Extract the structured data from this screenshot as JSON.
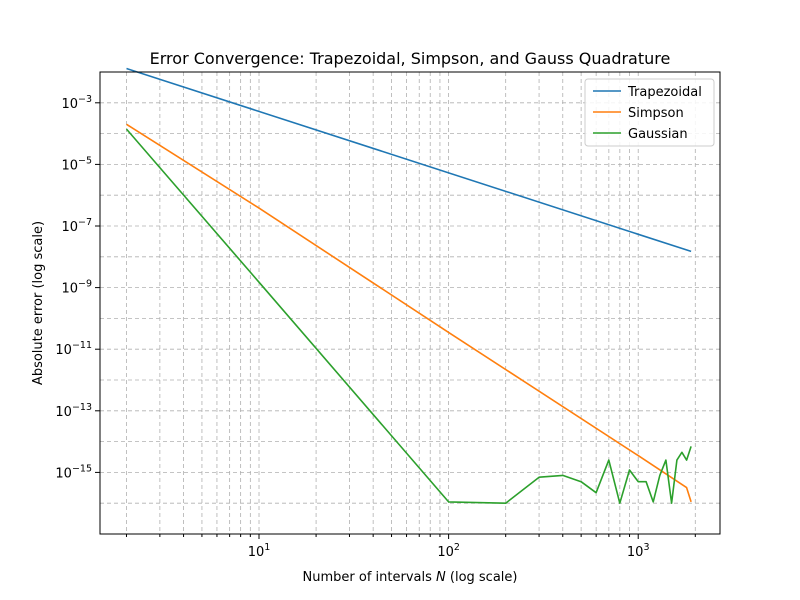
{
  "chart_data": {
    "type": "line",
    "title": "Error Convergence: Trapezoidal, Simpson, and Gauss Quadrature",
    "xlabel": "Number of intervals N (log scale)",
    "ylabel": "Absolute error (log scale)",
    "xscale": "log",
    "yscale": "log",
    "xlim": [
      1.45,
      2700
    ],
    "ylim": [
      1e-17,
      0.01
    ],
    "grid": "both major and minor, dashed",
    "legend": "top-right",
    "xticks": [
      {
        "value": 10,
        "label": "10",
        "sup": "1"
      },
      {
        "value": 100,
        "label": "10",
        "sup": "2"
      },
      {
        "value": 1000,
        "label": "10",
        "sup": "3"
      }
    ],
    "yticks": [
      {
        "value": 0.001,
        "label": "10",
        "sup": "−3"
      },
      {
        "value": 1e-05,
        "label": "10",
        "sup": "−5"
      },
      {
        "value": 1e-07,
        "label": "10",
        "sup": "−7"
      },
      {
        "value": 1e-09,
        "label": "10",
        "sup": "−9"
      },
      {
        "value": 1e-11,
        "label": "10",
        "sup": "−11"
      },
      {
        "value": 1e-13,
        "label": "10",
        "sup": "−13"
      },
      {
        "value": 1e-15,
        "label": "10",
        "sup": "−15"
      }
    ],
    "series": [
      {
        "name": "Trapezoidal",
        "color": "#1f77b4",
        "x": [
          2,
          1900
        ],
        "y": [
          0.013,
          1.5e-08
        ]
      },
      {
        "name": "Simpson",
        "color": "#ff7f0e",
        "x": [
          2,
          10,
          100,
          1000,
          1800,
          1900
        ],
        "y": [
          0.0002,
          3.8e-07,
          3.5e-11,
          3.5e-15,
          3.2e-16,
          1.1e-16
        ]
      },
      {
        "name": "Gaussian",
        "color": "#2ca02c",
        "x": [
          2,
          10,
          100,
          200,
          300,
          400,
          500,
          600,
          700,
          800,
          900,
          1000,
          1100,
          1200,
          1300,
          1400,
          1500,
          1600,
          1700,
          1800,
          1900
        ],
        "y": [
          0.00014,
          1.5e-09,
          1.1e-16,
          1e-16,
          7e-16,
          8e-16,
          5e-16,
          2.2e-16,
          2.5e-15,
          1e-16,
          1.2e-15,
          5e-16,
          5e-16,
          1.1e-16,
          8e-16,
          2.5e-15,
          1e-16,
          2.5e-15,
          4.5e-15,
          2.5e-15,
          7e-15
        ]
      }
    ]
  }
}
